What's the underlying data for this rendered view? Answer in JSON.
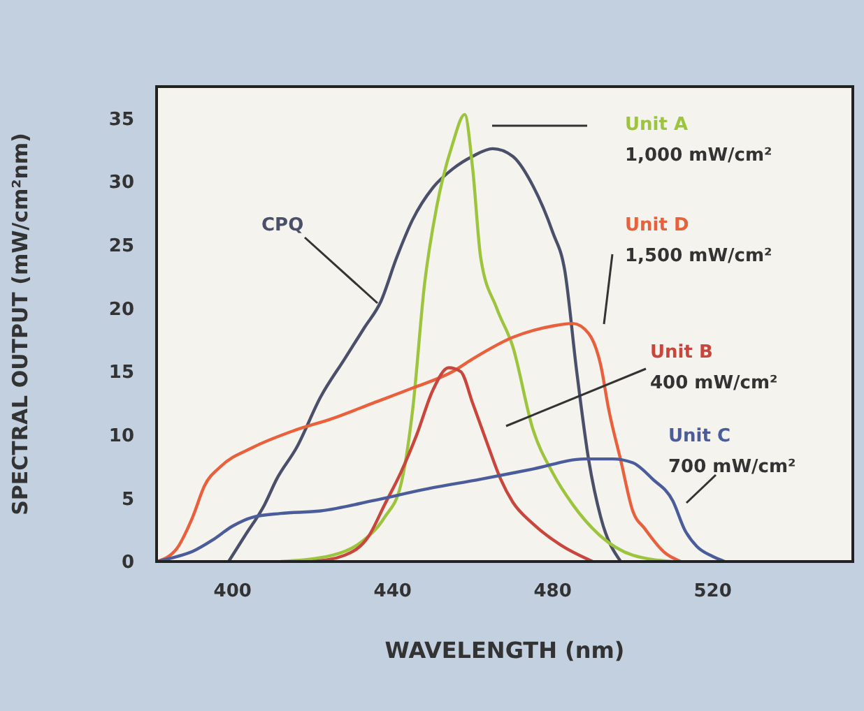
{
  "chart_data": {
    "type": "line",
    "xlabel": "WAVELENGTH (nm)",
    "ylabel": "SPECTRAL OUTPUT (mW/cm²nm)",
    "xlim": [
      381,
      555
    ],
    "xticks": [
      400,
      440,
      480,
      520
    ],
    "ylim": [
      0,
      37.5
    ],
    "yticks": [
      0,
      5,
      10,
      15,
      20,
      25,
      30,
      35
    ],
    "series": [
      {
        "name": "CPQ",
        "color": "#4a4f6a",
        "x": [
          399,
          403,
          408,
          411,
          416,
          422,
          428,
          433,
          437,
          441,
          445,
          450,
          455,
          460,
          465,
          470,
          475,
          480,
          483,
          486,
          489,
          492,
          497
        ],
        "values": [
          0,
          2,
          4.5,
          6.5,
          9,
          13,
          16,
          18.5,
          20.5,
          24,
          27,
          29.5,
          31,
          32,
          32.6,
          32,
          29.7,
          26,
          23,
          15,
          8,
          3.5,
          0
        ]
      },
      {
        "name": "Unit A",
        "color": "#9cc43c",
        "x": [
          412,
          425,
          432,
          438,
          442,
          445,
          448,
          451,
          455,
          458,
          460,
          462,
          466,
          470,
          475,
          480,
          485,
          492,
          500,
          510
        ],
        "values": [
          0,
          0.5,
          1.5,
          3.5,
          6,
          12,
          22,
          28,
          33,
          35.3,
          31,
          24,
          20,
          17,
          10.5,
          7,
          4.5,
          2,
          0.5,
          0
        ]
      },
      {
        "name": "Unit D",
        "color": "#e8603c",
        "x": [
          381,
          386,
          390,
          393,
          397,
          405,
          415,
          425,
          435,
          445,
          455,
          460,
          470,
          480,
          485,
          489,
          492,
          494,
          497,
          500,
          503,
          508,
          512
        ],
        "values": [
          0,
          1,
          3.5,
          6,
          7.5,
          9,
          10.3,
          11.3,
          12.5,
          13.7,
          15,
          16,
          17.7,
          18.6,
          18.8,
          18,
          15.5,
          12,
          8,
          4,
          2.6,
          0.7,
          0
        ]
      },
      {
        "name": "Unit B",
        "color": "#c8463c",
        "x": [
          420,
          428,
          434,
          438,
          442,
          446,
          450,
          454,
          457,
          460,
          464,
          467,
          470,
          475,
          482,
          490
        ],
        "values": [
          0,
          0.5,
          2,
          4.5,
          7,
          10,
          13.5,
          15.3,
          15,
          12.5,
          9,
          6.5,
          4.7,
          3,
          1.3,
          0
        ]
      },
      {
        "name": "Unit C",
        "color": "#4a5c9a",
        "x": [
          381,
          385,
          390,
          395,
          400,
          405,
          412,
          422,
          435,
          448,
          462,
          475,
          488,
          495,
          500,
          505,
          510,
          513,
          516,
          520,
          523
        ],
        "values": [
          0,
          0.3,
          0.8,
          1.7,
          2.8,
          3.5,
          3.8,
          4,
          4.8,
          5.7,
          6.5,
          7.3,
          8.1,
          8.1,
          7.8,
          6.5,
          4.8,
          2.5,
          1.2,
          0.4,
          0
        ]
      }
    ],
    "annotations": [
      "1,000 mW/cm²",
      "1,500 mW/cm²",
      "400 mW/cm²",
      "700 mW/cm²"
    ]
  }
}
